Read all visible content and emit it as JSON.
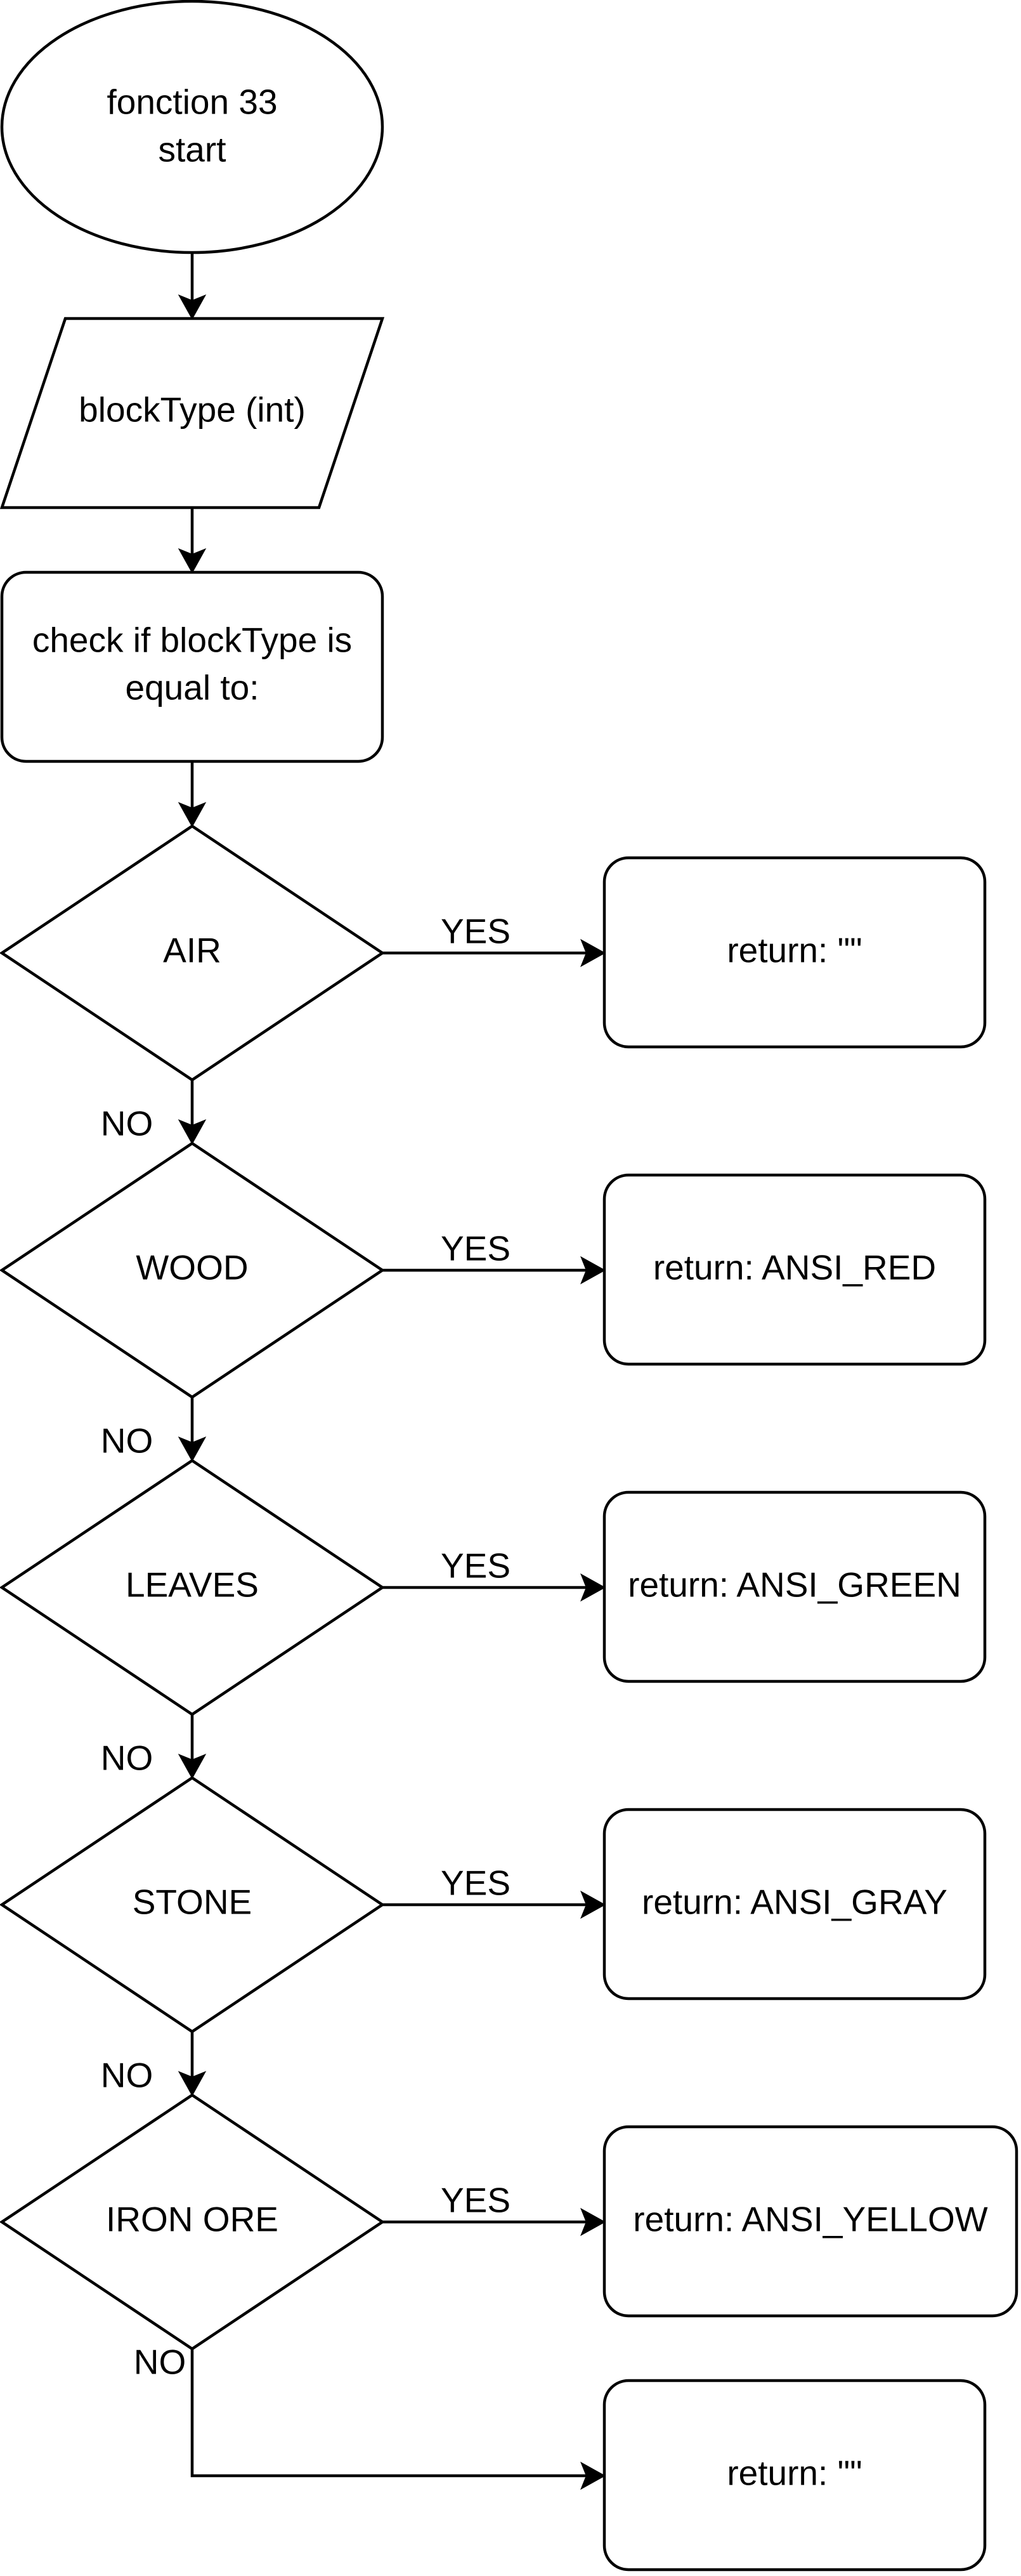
{
  "diagram": {
    "start": {
      "line1": "fonction 33",
      "line2": "start"
    },
    "input": "blockType (int)",
    "check": {
      "line1": "check if blockType is",
      "line2": "equal to:"
    },
    "decisions": [
      {
        "label": "AIR",
        "result": "return: \"\""
      },
      {
        "label": "WOOD",
        "result": "return: ANSI_RED"
      },
      {
        "label": "LEAVES",
        "result": "return: ANSI_GREEN"
      },
      {
        "label": "STONE",
        "result": "return: ANSI_GRAY"
      },
      {
        "label": "IRON ORE",
        "result": "return: ANSI_YELLOW"
      }
    ],
    "default_result": "return: \"\"",
    "yes_label": "YES",
    "no_label": "NO"
  }
}
